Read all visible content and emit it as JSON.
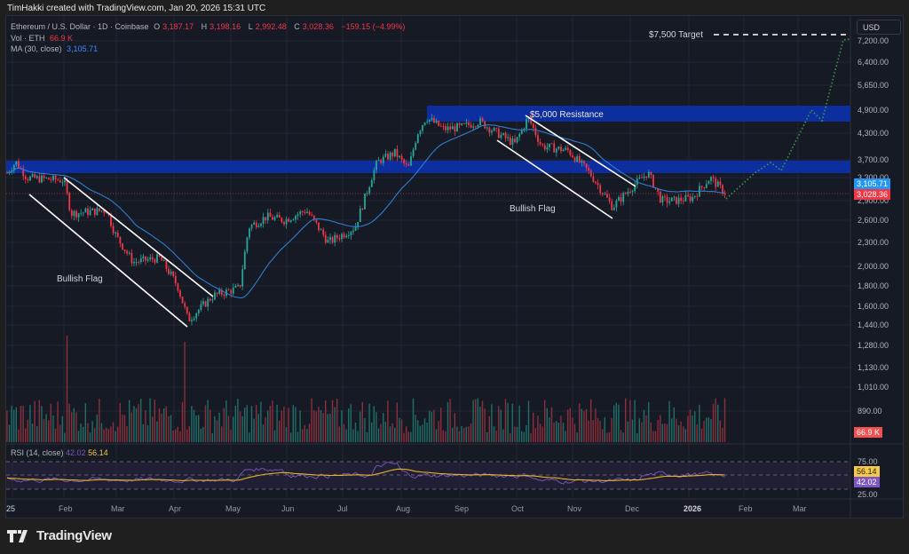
{
  "header": {
    "credit": "TimHakki created with TradingView.com, Jan 20, 2026 15:31 UTC"
  },
  "legend": {
    "symbol": "Ethereum / U.S. Dollar · 1D · Coinbase",
    "o_label": "O",
    "o_value": "3,187.17",
    "h_label": "H",
    "h_value": "3,198.16",
    "l_label": "L",
    "l_value": "2,992.48",
    "c_label": "C",
    "c_value": "3,028.36",
    "change": "−159.15 (−4.99%)",
    "vol_label": "Vol · ETH",
    "vol_value": "66.9 K",
    "ma_label": "MA (30, close)",
    "ma_value": "3,105.71"
  },
  "rsi_legend": {
    "label": "RSI (14, close)",
    "rsi_value": "42.02",
    "rsi_ma_value": "56.14"
  },
  "currency_button": "USD",
  "price_tags": {
    "ma": "3,105.71",
    "close": "3,028.36",
    "volume": "66.9 K",
    "rsi_ma": "56.14",
    "rsi": "42.02"
  },
  "annotations": {
    "target": "$7,500 Target",
    "resistance": "$5,000 Resistance",
    "flag1": "Bullish Flag",
    "flag2": "Bullish Flag"
  },
  "colors": {
    "up": "#26a69a",
    "down": "#f23645",
    "ma": "#2f7dd1",
    "zone": "#0d2e9e",
    "rsi": "#7e57c2",
    "rsi_ma": "#e6b422",
    "projection": "#3d9a4a"
  },
  "brand": "TradingView",
  "chart_data": {
    "type": "candlestick",
    "title": "Ethereum / U.S. Dollar · 1D · Coinbase",
    "y_axis_ticks": [
      "7,200.00",
      "6,400.00",
      "5,650.00",
      "4,900.00",
      "4,300.00",
      "3,700.00",
      "3,300.00",
      "2,900.00",
      "2,600.00",
      "2,300.00",
      "2,000.00",
      "1,800.00",
      "1,600.00",
      "1,440.00",
      "1,280.00",
      "1,130.00",
      "1,010.00",
      "890.00"
    ],
    "x_axis_ticks": [
      "25",
      "Feb",
      "Mar",
      "Apr",
      "May",
      "Jun",
      "Jul",
      "Aug",
      "Sep",
      "Oct",
      "Nov",
      "Dec",
      "2026",
      "Feb",
      "Mar"
    ],
    "rsi_ticks": [
      "75.00",
      "25.00"
    ],
    "scale": "log",
    "approx_monthly_close": {
      "x": [
        "Jan 2025",
        "Feb",
        "Mar",
        "Apr",
        "May",
        "Jun",
        "Jul",
        "Aug",
        "Sep",
        "Oct",
        "Nov",
        "Dec",
        "Jan 2026"
      ],
      "values": [
        3300,
        2200,
        1820,
        1800,
        2550,
        2500,
        3700,
        4400,
        4150,
        3850,
        3000,
        2970,
        3028
      ]
    },
    "key_levels": [
      {
        "name": "$5,000 Resistance",
        "low": 4650,
        "high": 5000
      },
      {
        "name": "Support/Resistance zone",
        "low": 3350,
        "high": 3700
      },
      {
        "name": "$7,500 Target",
        "value": 7500
      }
    ],
    "last": {
      "open": 3187.17,
      "high": 3198.16,
      "low": 2992.48,
      "close": 3028.36,
      "change": -159.15,
      "change_pct": -4.99,
      "ma30": 3105.71,
      "volume": "66.9K",
      "rsi": 42.02,
      "rsi_ma": 56.14
    },
    "legend_position": "top-left",
    "grid": true
  }
}
